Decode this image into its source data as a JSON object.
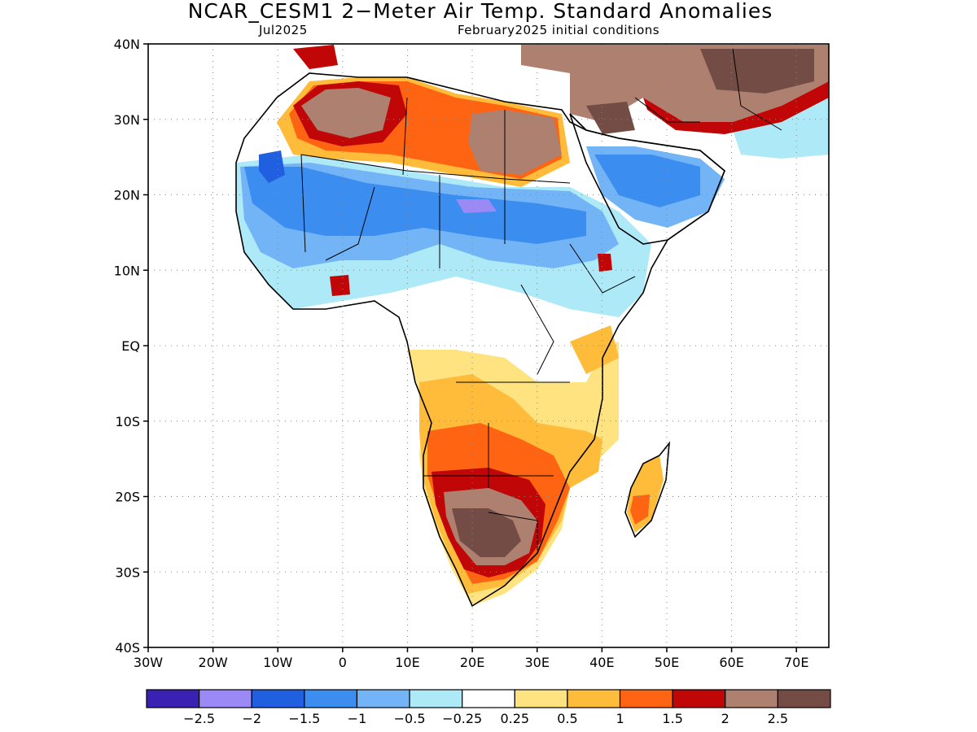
{
  "title": "NCAR_CESM1 2−Meter Air Temp. Standard Anomalies",
  "subtitle_left": "Jul2025",
  "subtitle_right": "February2025 initial conditions",
  "map": {
    "lat_range": [
      -40,
      40
    ],
    "lon_range": [
      -30,
      75
    ],
    "lat_ticks": [
      "40N",
      "30N",
      "20N",
      "10N",
      "EQ",
      "10S",
      "20S",
      "30S",
      "40S"
    ],
    "lon_ticks": [
      "30W",
      "20W",
      "10W",
      "0",
      "10E",
      "20E",
      "30E",
      "40E",
      "50E",
      "60E",
      "70E"
    ],
    "grid": "dotted",
    "coastline_color": "#000000"
  },
  "colorbar": {
    "colors": [
      "#3a21b4",
      "#9b89f5",
      "#1f5fe0",
      "#3b8ef0",
      "#73b4f7",
      "#ade9f7",
      "#ffffff",
      "#ffe381",
      "#ffbc3a",
      "#ff6412",
      "#c00606",
      "#ae8070",
      "#734c45"
    ],
    "labels": [
      "−2.5",
      "−2",
      "−1.5",
      "−1",
      "−0.5",
      "−0.25",
      "0.25",
      "0.5",
      "1",
      "1.5",
      "2",
      "2.5"
    ]
  }
}
